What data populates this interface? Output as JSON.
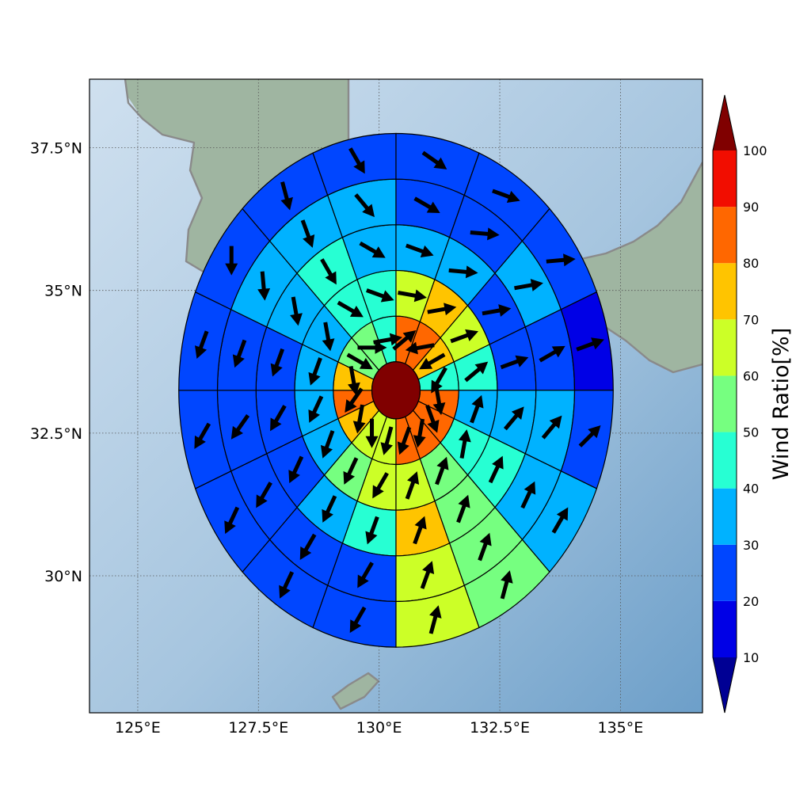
{
  "map": {
    "lon_ticks": [
      "125°E",
      "127.5°E",
      "130°E",
      "132.5°E",
      "135°E"
    ],
    "lat_ticks": [
      "37.5°N",
      "35°N",
      "32.5°N",
      "30°N"
    ],
    "lon_tick_values": [
      125,
      127.5,
      130,
      132.5,
      135
    ],
    "lat_tick_values": [
      37.5,
      35,
      32.5,
      30
    ],
    "extent": {
      "lon": [
        124.0,
        136.7
      ],
      "lat": [
        27.6,
        38.7
      ]
    },
    "center": {
      "lon": 130.35,
      "lat": 33.25
    },
    "grid": true,
    "basemap": "shaded-relief"
  },
  "chart_data": {
    "type": "polar-sector-map",
    "rings_deg": [
      0.5,
      1.3,
      2.1,
      2.9,
      3.7,
      4.5
    ],
    "sector_count": 16,
    "center_value": 100,
    "ratio_rings": [
      [
        65,
        65,
        75,
        85,
        75,
        55,
        55,
        45,
        85,
        85,
        75,
        45,
        85,
        85,
        85,
        85
      ],
      [
        65,
        55,
        35,
        35,
        35,
        35,
        45,
        45,
        65,
        75,
        65,
        45,
        35,
        45,
        55,
        65
      ],
      [
        45,
        35,
        25,
        25,
        25,
        35,
        45,
        35,
        35,
        35,
        25,
        25,
        35,
        45,
        55,
        75
      ],
      [
        25,
        25,
        25,
        25,
        25,
        35,
        35,
        35,
        25,
        25,
        35,
        25,
        35,
        35,
        55,
        65
      ],
      [
        25,
        25,
        25,
        25,
        25,
        25,
        25,
        25,
        25,
        25,
        25,
        15,
        25,
        35,
        55,
        65
      ]
    ],
    "wind_direction_rings": [
      [
        195,
        180,
        190,
        215,
        170,
        120,
        90,
        80,
        50,
        260,
        240,
        210,
        170,
        160,
        190,
        200
      ],
      [
        210,
        205,
        200,
        205,
        200,
        170,
        120,
        110,
        100,
        80,
        70,
        50,
        20,
        10,
        20,
        20
      ],
      [
        200,
        205,
        205,
        210,
        200,
        170,
        150,
        120,
        110,
        95,
        80,
        70,
        40,
        25,
        20,
        20
      ],
      [
        210,
        210,
        210,
        215,
        200,
        175,
        160,
        140,
        120,
        95,
        80,
        60,
        40,
        25,
        20,
        20
      ],
      [
        210,
        205,
        205,
        210,
        200,
        180,
        165,
        150,
        125,
        110,
        85,
        70,
        45,
        30,
        15,
        15
      ]
    ],
    "colorbar": {
      "title": "Wind Ratio[%]",
      "tick_labels": [
        "10",
        "20",
        "30",
        "40",
        "50",
        "60",
        "70",
        "80",
        "90",
        "100"
      ],
      "levels": [
        10,
        20,
        30,
        40,
        50,
        60,
        70,
        80,
        90,
        100
      ],
      "colors": [
        "#000094",
        "#0000e6",
        "#0046ff",
        "#00b2ff",
        "#27ffd3",
        "#76ff80",
        "#ccff27",
        "#ffc400",
        "#ff6700",
        "#f20d00",
        "#800000"
      ],
      "extend": "both"
    }
  }
}
